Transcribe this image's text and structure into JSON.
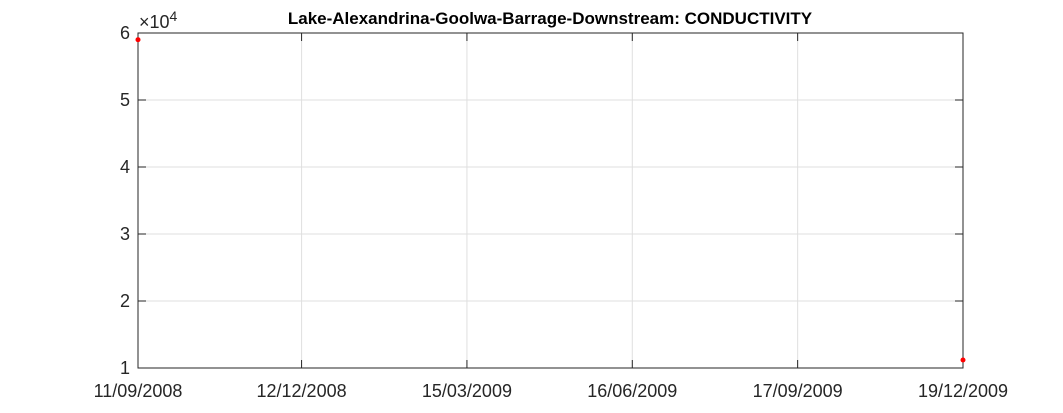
{
  "chart_data": {
    "type": "scatter",
    "title": "Lake-Alexandrina-Goolwa-Barrage-Downstream: CONDUCTIVITY",
    "xlabel": "",
    "ylabel": "",
    "x_ticks": [
      "11/09/2008",
      "12/12/2008",
      "15/03/2009",
      "16/06/2009",
      "17/09/2009",
      "19/12/2009"
    ],
    "y_ticks": [
      "1",
      "2",
      "3",
      "4",
      "5",
      "6"
    ],
    "y_tick_values": [
      1,
      2,
      3,
      4,
      5,
      6
    ],
    "y_exponent_base": "×10",
    "y_exponent_power": "4",
    "xlim": [
      "11/09/2008",
      "19/12/2009"
    ],
    "ylim": [
      10000,
      60000
    ],
    "grid": true,
    "series": [
      {
        "color": "#ff0000",
        "points": [
          {
            "x": "11/09/2008",
            "y": 59000
          },
          {
            "x": "19/12/2009",
            "y": 11200
          }
        ]
      }
    ]
  }
}
